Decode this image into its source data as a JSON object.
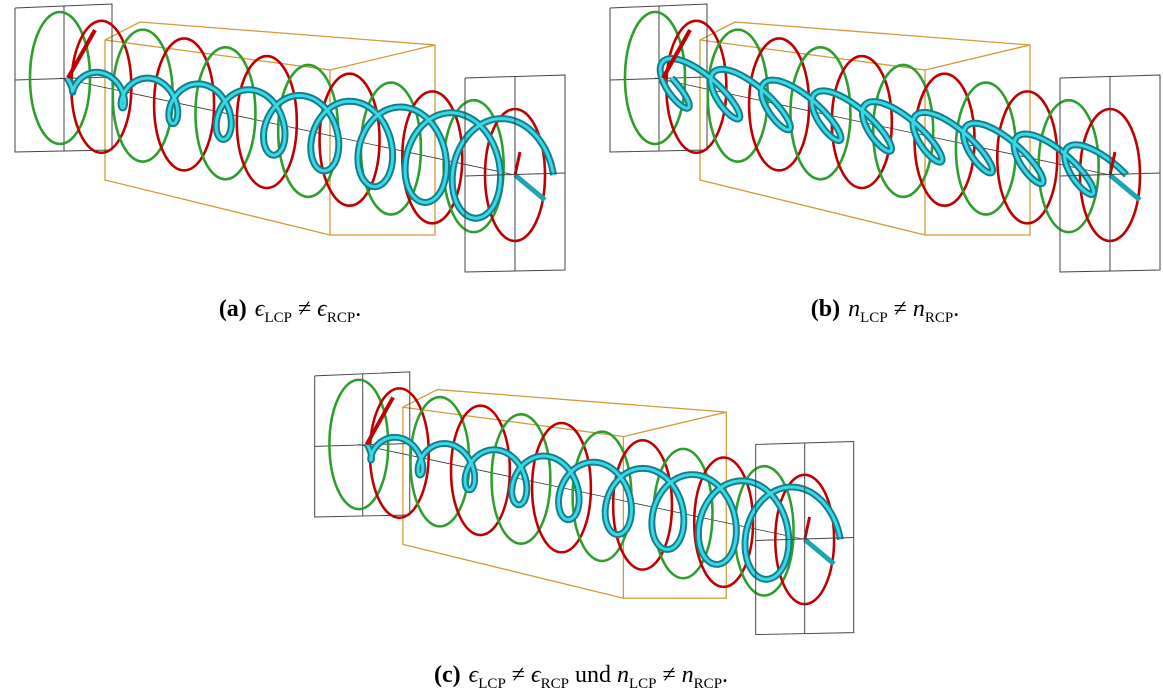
{
  "panels": [
    {
      "label": "(a)",
      "caption": [
        {
          "t": "ϵ",
          "sub": "LCP"
        },
        {
          "t": " ≠ "
        },
        {
          "t": "ϵ",
          "sub": "RCP"
        },
        {
          "t": "."
        }
      ]
    },
    {
      "label": "(b)",
      "caption": [
        {
          "t": "n",
          "sub": "LCP"
        },
        {
          "t": " ≠ "
        },
        {
          "t": "n",
          "sub": "RCP"
        },
        {
          "t": "."
        }
      ]
    },
    {
      "label": "(c)",
      "caption": [
        {
          "t": "ϵ",
          "sub": "LCP"
        },
        {
          "t": " ≠ "
        },
        {
          "t": "ϵ",
          "sub": "RCP"
        },
        {
          "t": " und "
        },
        {
          "t": "n",
          "sub": "LCP"
        },
        {
          "t": " ≠ "
        },
        {
          "t": "n",
          "sub": "RCP"
        },
        {
          "t": "."
        }
      ]
    }
  ]
}
